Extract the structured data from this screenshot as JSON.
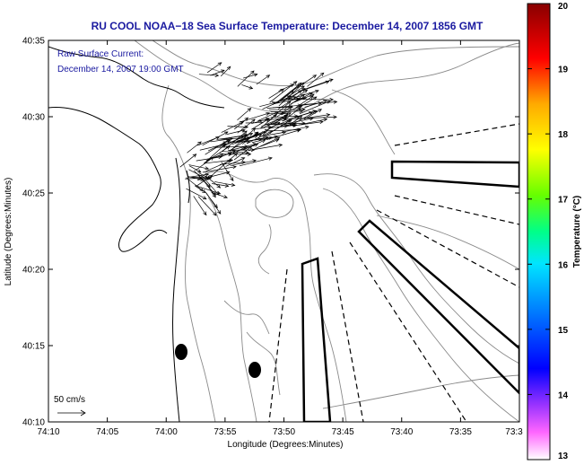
{
  "title": "RU COOL  NOAA−18  Sea Surface Temperature:  December 14, 2007 1856 GMT",
  "annotation": {
    "line1": "Raw Surface Current:",
    "line2": "December 14, 2007 19:00 GMT"
  },
  "scale_label": "50 cm/s",
  "axes": {
    "xlabel": "Longitude (Degrees:Minutes)",
    "ylabel": "Latitude (Degrees:Minutes)",
    "x_ticks": [
      "74:10",
      "74:05",
      "74:00",
      "73:55",
      "73:50",
      "73:45",
      "73:40",
      "73:35",
      "73:3"
    ],
    "y_ticks": [
      "40:35",
      "40:30",
      "40:25",
      "40:20",
      "40:15",
      "40:10"
    ]
  },
  "colorbar": {
    "label": "Temperature (°C)",
    "ticks": [
      "20",
      "19",
      "18",
      "17",
      "16",
      "15",
      "14",
      "13"
    ],
    "min": 13,
    "max": 20
  },
  "colors": {
    "title": "#1a1aa0",
    "annotation": "#1a1aa0",
    "contour": "#8a8a8a",
    "coast": "#000000",
    "vectors": "#000000"
  }
}
